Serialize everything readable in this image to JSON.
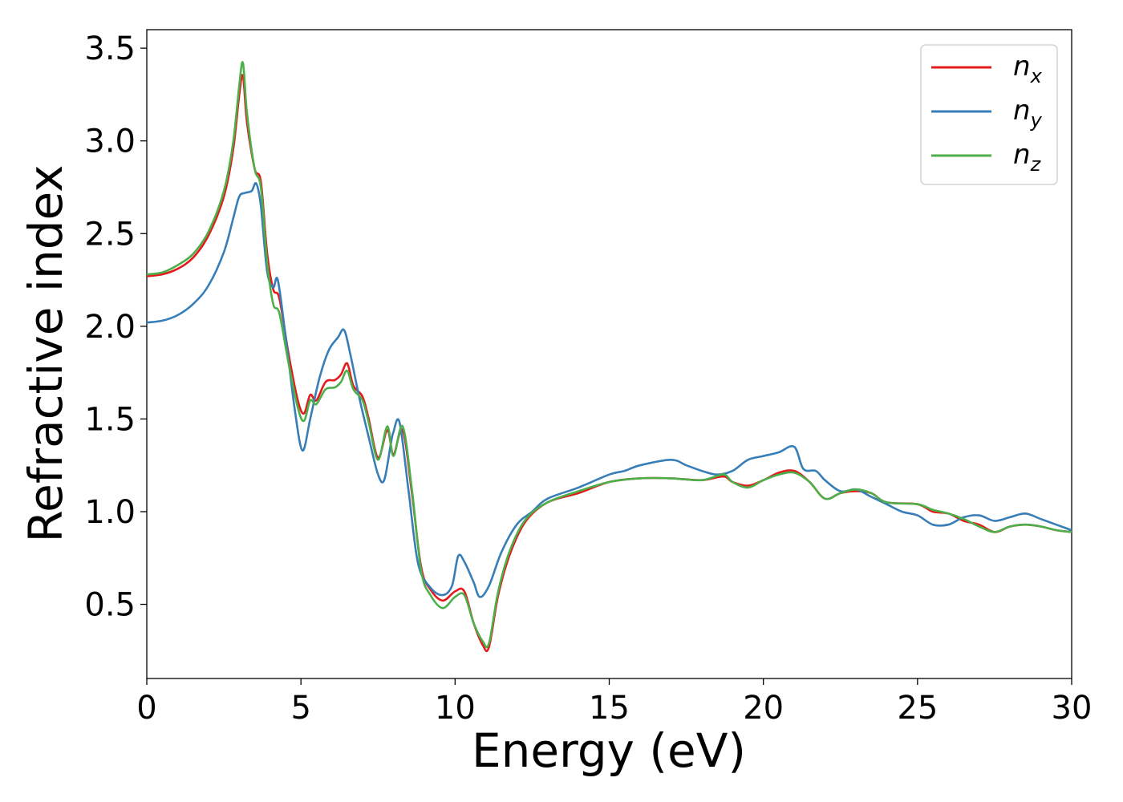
{
  "chart_data": {
    "type": "line",
    "xlabel": "Energy (eV)",
    "ylabel": "Refractive index",
    "xlim": [
      0,
      30
    ],
    "ylim": [
      0.1,
      3.6
    ],
    "xticks": [
      "0",
      "5",
      "10",
      "15",
      "20",
      "25",
      "30"
    ],
    "yticks": [
      "0.5",
      "1.0",
      "1.5",
      "2.0",
      "2.5",
      "3.0",
      "3.5"
    ],
    "grid": false,
    "legend_position": "top-right",
    "series": [
      {
        "name": "n",
        "subscript": "x",
        "color": "#e41a1c",
        "points": [
          [
            0,
            2.27
          ],
          [
            0.5,
            2.28
          ],
          [
            1,
            2.31
          ],
          [
            1.5,
            2.37
          ],
          [
            2,
            2.49
          ],
          [
            2.5,
            2.7
          ],
          [
            2.8,
            2.95
          ],
          [
            3.0,
            3.25
          ],
          [
            3.12,
            3.35
          ],
          [
            3.25,
            3.1
          ],
          [
            3.5,
            2.85
          ],
          [
            3.7,
            2.78
          ],
          [
            3.9,
            2.4
          ],
          [
            4.1,
            2.2
          ],
          [
            4.3,
            2.15
          ],
          [
            4.6,
            1.85
          ],
          [
            4.9,
            1.6
          ],
          [
            5.1,
            1.53
          ],
          [
            5.3,
            1.63
          ],
          [
            5.5,
            1.6
          ],
          [
            5.8,
            1.7
          ],
          [
            6.1,
            1.71
          ],
          [
            6.3,
            1.74
          ],
          [
            6.5,
            1.8
          ],
          [
            6.7,
            1.68
          ],
          [
            7.0,
            1.62
          ],
          [
            7.2,
            1.5
          ],
          [
            7.5,
            1.29
          ],
          [
            7.8,
            1.44
          ],
          [
            8.0,
            1.31
          ],
          [
            8.3,
            1.44
          ],
          [
            8.6,
            1.1
          ],
          [
            8.9,
            0.7
          ],
          [
            9.2,
            0.58
          ],
          [
            9.6,
            0.52
          ],
          [
            10.0,
            0.57
          ],
          [
            10.3,
            0.57
          ],
          [
            10.6,
            0.4
          ],
          [
            10.9,
            0.28
          ],
          [
            11.1,
            0.27
          ],
          [
            11.4,
            0.55
          ],
          [
            11.8,
            0.78
          ],
          [
            12.3,
            0.95
          ],
          [
            13,
            1.05
          ],
          [
            14,
            1.1
          ],
          [
            15,
            1.16
          ],
          [
            16,
            1.18
          ],
          [
            17,
            1.18
          ],
          [
            18,
            1.17
          ],
          [
            18.7,
            1.19
          ],
          [
            19,
            1.16
          ],
          [
            19.5,
            1.14
          ],
          [
            20,
            1.17
          ],
          [
            20.5,
            1.21
          ],
          [
            21,
            1.22
          ],
          [
            21.5,
            1.16
          ],
          [
            22,
            1.07
          ],
          [
            22.5,
            1.1
          ],
          [
            23,
            1.11
          ],
          [
            23.5,
            1.1
          ],
          [
            24,
            1.05
          ],
          [
            25,
            1.04
          ],
          [
            25.5,
            1.0
          ],
          [
            26,
            0.99
          ],
          [
            26.5,
            0.95
          ],
          [
            27,
            0.93
          ],
          [
            27.5,
            0.89
          ],
          [
            28,
            0.92
          ],
          [
            28.5,
            0.93
          ],
          [
            29,
            0.92
          ],
          [
            29.5,
            0.9
          ],
          [
            30,
            0.89
          ]
        ]
      },
      {
        "name": "n",
        "subscript": "y",
        "color": "#377eb8",
        "points": [
          [
            0,
            2.02
          ],
          [
            0.5,
            2.03
          ],
          [
            1,
            2.06
          ],
          [
            1.5,
            2.12
          ],
          [
            2,
            2.22
          ],
          [
            2.5,
            2.4
          ],
          [
            2.8,
            2.58
          ],
          [
            3.0,
            2.7
          ],
          [
            3.2,
            2.72
          ],
          [
            3.4,
            2.73
          ],
          [
            3.55,
            2.77
          ],
          [
            3.7,
            2.65
          ],
          [
            3.9,
            2.3
          ],
          [
            4.1,
            2.21
          ],
          [
            4.25,
            2.25
          ],
          [
            4.5,
            1.95
          ],
          [
            4.8,
            1.55
          ],
          [
            5.05,
            1.33
          ],
          [
            5.3,
            1.5
          ],
          [
            5.6,
            1.72
          ],
          [
            5.9,
            1.87
          ],
          [
            6.2,
            1.94
          ],
          [
            6.4,
            1.98
          ],
          [
            6.6,
            1.85
          ],
          [
            6.9,
            1.61
          ],
          [
            7.2,
            1.4
          ],
          [
            7.5,
            1.2
          ],
          [
            7.7,
            1.17
          ],
          [
            7.9,
            1.35
          ],
          [
            8.0,
            1.43
          ],
          [
            8.2,
            1.48
          ],
          [
            8.5,
            1.1
          ],
          [
            8.8,
            0.72
          ],
          [
            9.2,
            0.59
          ],
          [
            9.6,
            0.55
          ],
          [
            9.9,
            0.6
          ],
          [
            10.1,
            0.76
          ],
          [
            10.3,
            0.73
          ],
          [
            10.6,
            0.62
          ],
          [
            10.8,
            0.54
          ],
          [
            11.1,
            0.6
          ],
          [
            11.5,
            0.78
          ],
          [
            12,
            0.93
          ],
          [
            12.5,
            1.0
          ],
          [
            13,
            1.07
          ],
          [
            14,
            1.13
          ],
          [
            15,
            1.2
          ],
          [
            15.5,
            1.22
          ],
          [
            16,
            1.25
          ],
          [
            17,
            1.28
          ],
          [
            17.5,
            1.25
          ],
          [
            18,
            1.22
          ],
          [
            18.5,
            1.2
          ],
          [
            19,
            1.22
          ],
          [
            19.5,
            1.28
          ],
          [
            20,
            1.3
          ],
          [
            20.5,
            1.32
          ],
          [
            21,
            1.35
          ],
          [
            21.3,
            1.23
          ],
          [
            21.7,
            1.22
          ],
          [
            22,
            1.17
          ],
          [
            22.5,
            1.11
          ],
          [
            23,
            1.12
          ],
          [
            23.5,
            1.08
          ],
          [
            24,
            1.04
          ],
          [
            24.5,
            1.0
          ],
          [
            25,
            0.98
          ],
          [
            25.5,
            0.93
          ],
          [
            26,
            0.93
          ],
          [
            26.5,
            0.97
          ],
          [
            27,
            0.98
          ],
          [
            27.5,
            0.95
          ],
          [
            28,
            0.97
          ],
          [
            28.5,
            0.99
          ],
          [
            29,
            0.96
          ],
          [
            29.5,
            0.93
          ],
          [
            30,
            0.9
          ]
        ]
      },
      {
        "name": "n",
        "subscript": "z",
        "color": "#4daf4a",
        "points": [
          [
            0,
            2.28
          ],
          [
            0.5,
            2.29
          ],
          [
            1,
            2.33
          ],
          [
            1.5,
            2.39
          ],
          [
            2,
            2.51
          ],
          [
            2.5,
            2.73
          ],
          [
            2.8,
            2.99
          ],
          [
            3.0,
            3.3
          ],
          [
            3.12,
            3.42
          ],
          [
            3.25,
            3.15
          ],
          [
            3.5,
            2.85
          ],
          [
            3.7,
            2.75
          ],
          [
            3.9,
            2.35
          ],
          [
            4.1,
            2.12
          ],
          [
            4.3,
            2.07
          ],
          [
            4.6,
            1.8
          ],
          [
            4.9,
            1.56
          ],
          [
            5.1,
            1.49
          ],
          [
            5.3,
            1.6
          ],
          [
            5.5,
            1.58
          ],
          [
            5.8,
            1.66
          ],
          [
            6.1,
            1.67
          ],
          [
            6.3,
            1.7
          ],
          [
            6.5,
            1.76
          ],
          [
            6.7,
            1.66
          ],
          [
            7.0,
            1.6
          ],
          [
            7.2,
            1.48
          ],
          [
            7.5,
            1.28
          ],
          [
            7.8,
            1.46
          ],
          [
            8.0,
            1.3
          ],
          [
            8.3,
            1.46
          ],
          [
            8.6,
            1.12
          ],
          [
            8.9,
            0.68
          ],
          [
            9.2,
            0.55
          ],
          [
            9.6,
            0.48
          ],
          [
            10.0,
            0.54
          ],
          [
            10.3,
            0.55
          ],
          [
            10.6,
            0.4
          ],
          [
            10.9,
            0.3
          ],
          [
            11.1,
            0.29
          ],
          [
            11.4,
            0.57
          ],
          [
            11.8,
            0.8
          ],
          [
            12.3,
            0.96
          ],
          [
            13,
            1.05
          ],
          [
            14,
            1.11
          ],
          [
            15,
            1.16
          ],
          [
            16,
            1.18
          ],
          [
            17,
            1.18
          ],
          [
            18,
            1.17
          ],
          [
            18.7,
            1.2
          ],
          [
            19,
            1.16
          ],
          [
            19.5,
            1.13
          ],
          [
            20,
            1.17
          ],
          [
            20.5,
            1.2
          ],
          [
            21,
            1.21
          ],
          [
            21.5,
            1.16
          ],
          [
            22,
            1.07
          ],
          [
            22.5,
            1.1
          ],
          [
            23,
            1.12
          ],
          [
            23.5,
            1.1
          ],
          [
            24,
            1.05
          ],
          [
            25,
            1.04
          ],
          [
            25.5,
            1.01
          ],
          [
            26,
            0.99
          ],
          [
            26.5,
            0.96
          ],
          [
            27,
            0.92
          ],
          [
            27.5,
            0.89
          ],
          [
            28,
            0.92
          ],
          [
            28.5,
            0.93
          ],
          [
            29,
            0.92
          ],
          [
            29.5,
            0.9
          ],
          [
            30,
            0.89
          ]
        ]
      }
    ]
  }
}
